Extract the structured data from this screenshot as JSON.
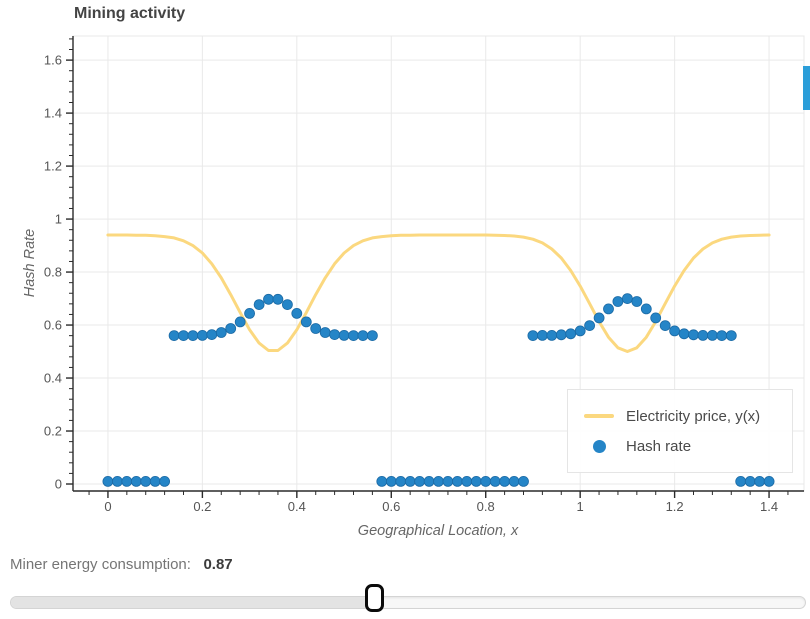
{
  "title": "Mining activity",
  "colors": {
    "accent_line": "#fbd87f",
    "accent_scatter": "#2585c7",
    "scatter_edge": "#1b6aa5",
    "grid": "#e9e9e9",
    "frame": "#e8e8e8",
    "spine": "#2a2a2a",
    "tick_label": "#555555",
    "scrollbar": "#2b9ed9"
  },
  "chart_data": {
    "type": "line+scatter",
    "title": "Mining activity",
    "xlabel": "Geographical Location, x",
    "ylabel": "Hash Rate",
    "grid": true,
    "legend_position": "bottom-right",
    "xlim": [
      -0.074,
      1.474
    ],
    "ylim": [
      -0.0264,
      1.691
    ],
    "x_tick_values": [
      0,
      0.2,
      0.4,
      0.6,
      0.8,
      1,
      1.2,
      1.4
    ],
    "x_tick_labels": [
      "0",
      "0.2",
      "0.4",
      "0.6",
      "0.8",
      "1",
      "1.2",
      "1.4"
    ],
    "y_tick_values": [
      0,
      0.2,
      0.4,
      0.6,
      0.8,
      1,
      1.2,
      1.4,
      1.6
    ],
    "y_tick_labels": [
      "0",
      "0.2",
      "0.4",
      "0.6",
      "0.8",
      "1",
      "1.2",
      "1.4",
      "1.6"
    ],
    "minor_tick_step": 0.04,
    "x": [
      0,
      0.02,
      0.04,
      0.06,
      0.08,
      0.1,
      0.12,
      0.14,
      0.16,
      0.18,
      0.2,
      0.22,
      0.24,
      0.26,
      0.28,
      0.3,
      0.32,
      0.34,
      0.36,
      0.38,
      0.4,
      0.42,
      0.44,
      0.46,
      0.48,
      0.5,
      0.52,
      0.54,
      0.56,
      0.58,
      0.6,
      0.62,
      0.64,
      0.66,
      0.68,
      0.7,
      0.72,
      0.74,
      0.76,
      0.78,
      0.8,
      0.82,
      0.84,
      0.86,
      0.88,
      0.9,
      0.92,
      0.94,
      0.96,
      0.98,
      1,
      1.02,
      1.04,
      1.06,
      1.08,
      1.1,
      1.12,
      1.14,
      1.16,
      1.18,
      1.2,
      1.22,
      1.24,
      1.26,
      1.28,
      1.3,
      1.32,
      1.34,
      1.36,
      1.38,
      1.4
    ],
    "series": [
      {
        "name": "Electricity price, y(x)",
        "type": "line",
        "color": "#fbd87f",
        "y": [
          0.94,
          0.94,
          0.94,
          0.939,
          0.939,
          0.937,
          0.934,
          0.929,
          0.918,
          0.9,
          0.872,
          0.831,
          0.778,
          0.715,
          0.647,
          0.582,
          0.532,
          0.504,
          0.504,
          0.532,
          0.582,
          0.647,
          0.715,
          0.778,
          0.831,
          0.872,
          0.9,
          0.918,
          0.929,
          0.934,
          0.937,
          0.939,
          0.939,
          0.94,
          0.94,
          0.94,
          0.94,
          0.94,
          0.94,
          0.94,
          0.94,
          0.939,
          0.938,
          0.936,
          0.932,
          0.924,
          0.91,
          0.887,
          0.853,
          0.806,
          0.747,
          0.681,
          0.613,
          0.554,
          0.514,
          0.5,
          0.514,
          0.554,
          0.613,
          0.681,
          0.747,
          0.806,
          0.853,
          0.887,
          0.91,
          0.924,
          0.932,
          0.936,
          0.938,
          0.939,
          0.94
        ]
      },
      {
        "name": "Hash rate",
        "type": "scatter",
        "color": "#2585c7",
        "y": [
          0.01,
          0.01,
          0.01,
          0.01,
          0.01,
          0.01,
          0.01,
          0.56,
          0.56,
          0.56,
          0.561,
          0.564,
          0.572,
          0.587,
          0.612,
          0.644,
          0.677,
          0.697,
          0.697,
          0.677,
          0.644,
          0.612,
          0.587,
          0.572,
          0.564,
          0.561,
          0.56,
          0.56,
          0.56,
          0.01,
          0.01,
          0.01,
          0.01,
          0.01,
          0.01,
          0.01,
          0.01,
          0.01,
          0.01,
          0.01,
          0.01,
          0.01,
          0.01,
          0.01,
          0.01,
          0.56,
          0.561,
          0.561,
          0.563,
          0.567,
          0.578,
          0.598,
          0.627,
          0.661,
          0.689,
          0.7,
          0.689,
          0.661,
          0.627,
          0.598,
          0.578,
          0.567,
          0.563,
          0.561,
          0.561,
          0.56,
          0.56,
          0.01,
          0.01,
          0.01,
          0.01
        ]
      }
    ]
  },
  "legend": {
    "items": [
      {
        "label": "Electricity price, y(x)",
        "swatch": "line",
        "color": "#fbd87f"
      },
      {
        "label": "Hash rate",
        "swatch": "dot",
        "color": "#2585c7"
      }
    ]
  },
  "slider": {
    "label": "Miner energy consumption:",
    "value": "0.87",
    "fraction": 0.458
  }
}
